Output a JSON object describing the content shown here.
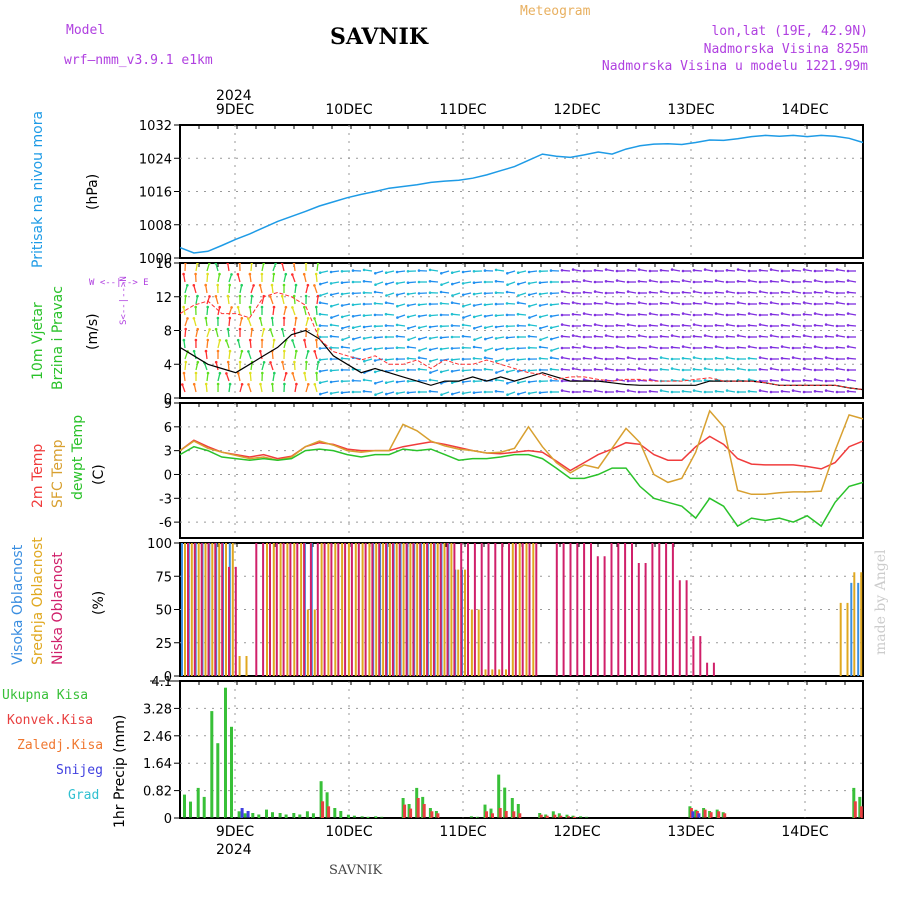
{
  "header": {
    "model_label": "Model",
    "model_name": "wrf—nmm_v3.9.1  e1km",
    "station": "SAVNIK",
    "product": "Meteogram",
    "lonlat": "lon,lat (19E, 42.9N)",
    "elevation": "Nadmorska Visina 825m",
    "model_elevation": "Nadmorska Visina u modelu 1221.99m"
  },
  "dates": {
    "year": "2024",
    "days": [
      "9DEC",
      "10DEC",
      "11DEC",
      "12DEC",
      "13DEC",
      "14DEC"
    ]
  },
  "footer": {
    "station": "SAVNIK",
    "signature": "made by Angel"
  },
  "panels": {
    "pressure": {
      "label1": "Pritisak na nivou mora",
      "unit": "(hPa)"
    },
    "wind": {
      "label1": "10m Vjetar",
      "label2": "Brzina i Pravac",
      "unit": "(m/s)",
      "compass": "W <--|--> E",
      "compass2": "S<--|-->N"
    },
    "temp": {
      "label1": "2m Temp",
      "label2": "SFC Temp",
      "label3": "dewpt Temp",
      "unit": "(C)"
    },
    "cloud": {
      "label1": "Visoka Oblacnost",
      "label2": "Srednja Oblacnost",
      "label3": "Niska Oblacnost",
      "unit": "(%)"
    },
    "precip": {
      "label1": "Ukupna Kisa",
      "label2": "Konvek.Kisa",
      "label3": "Zaledj.Kisa",
      "label4": "Snijeg",
      "label5": "Grad",
      "unit": "1hr Precip (mm)"
    }
  },
  "colors": {
    "pressure": "#1e9be6",
    "t2m": "#f03c3c",
    "tsfc": "#d8a030",
    "dewpt": "#2ac22a",
    "high_cloud": "#3a8ee0",
    "mid_cloud": "#e0a820",
    "low_cloud": "#d0206a",
    "total_rain": "#38c038",
    "conv_rain": "#e84040",
    "frz_rain": "#f07830",
    "snow": "#4040e0",
    "hail": "#30c0d0",
    "purple_text": "#b040e0"
  },
  "chart_data": [
    {
      "type": "line",
      "title": "",
      "ylabel": "Pritisak na nivou mora (hPa)",
      "ylim": [
        1000,
        1032
      ],
      "yticks": [
        1000,
        1008,
        1016,
        1024,
        1032
      ],
      "x_hours_from_start": [
        0,
        6,
        12,
        18,
        24,
        30,
        36,
        42,
        48,
        54,
        60,
        66,
        72,
        78,
        84,
        90,
        96,
        102,
        108,
        114,
        120,
        126,
        132,
        138,
        144
      ],
      "x_hours_full": [
        0,
        3,
        6,
        9,
        12,
        15,
        18,
        21,
        24,
        27,
        30,
        33,
        36,
        39,
        42,
        45,
        48,
        51,
        54,
        57,
        60,
        63,
        66,
        69,
        72,
        75,
        78,
        81,
        84,
        87,
        90,
        93,
        96,
        99,
        102,
        105,
        108,
        111,
        114,
        117,
        120,
        123,
        126,
        129,
        132,
        135,
        138,
        141,
        144,
        147
      ],
      "series": [
        {
          "name": "Pritisak",
          "values": [
            1002.5,
            1001.2,
            1001.6,
            1003.0,
            1004.5,
            1005.8,
            1007.3,
            1008.8,
            1010.0,
            1011.2,
            1012.5,
            1013.5,
            1014.5,
            1015.3,
            1016.0,
            1016.8,
            1017.2,
            1017.6,
            1018.2,
            1018.5,
            1018.7,
            1019.2,
            1020.0,
            1021.0,
            1022.0,
            1023.5,
            1025.0,
            1024.5,
            1024.2,
            1024.8,
            1025.5,
            1025.0,
            1026.2,
            1027.0,
            1027.4,
            1027.5,
            1027.3,
            1027.8,
            1028.4,
            1028.3,
            1028.7,
            1029.2,
            1029.5,
            1029.3,
            1029.5,
            1029.2,
            1029.5,
            1029.3,
            1028.8,
            1027.8
          ]
        }
      ]
    },
    {
      "type": "line",
      "title": "",
      "ylabel": "10m Vjetar Brzina i Pravac (m/s)",
      "ylim": [
        0,
        16
      ],
      "yticks": [
        0,
        4,
        8,
        12,
        16
      ],
      "series": [
        {
          "name": "wind speed",
          "values": [
            6,
            5,
            4,
            3.5,
            3,
            4,
            5,
            6,
            7.5,
            8,
            7,
            5,
            4,
            3,
            3.5,
            3,
            2.5,
            2,
            1.5,
            2,
            2,
            2.5,
            2,
            2.5,
            2,
            2.5,
            3,
            2.5,
            2,
            2,
            2,
            1.8,
            1.6,
            1.5,
            1.5,
            1.5,
            1.5,
            1.5,
            2,
            2,
            2,
            2,
            1.8,
            1.5,
            1.5,
            1.5,
            1.5,
            1.5,
            1.2,
            1
          ]
        },
        {
          "name": "gust",
          "values": [
            10,
            11,
            11.5,
            10,
            10,
            9.5,
            12,
            12.5,
            12,
            11,
            7,
            5.5,
            5,
            4.5,
            5,
            4,
            4,
            4.5,
            3.5,
            4.5,
            4,
            4,
            4.5,
            4,
            3.5,
            3,
            2.8,
            2.2,
            2.5,
            2.5,
            2.2,
            2,
            2.2,
            2.2,
            2,
            2,
            2,
            2.2,
            2.4,
            2,
            2,
            2,
            1.8,
            1.5,
            1.5,
            1.5,
            1.5,
            1.5,
            1.2,
            1
          ]
        }
      ]
    },
    {
      "type": "line",
      "title": "",
      "ylabel": "2m Temp, SFC Temp, dewpt Temp (C)",
      "ylim": [
        -8,
        9
      ],
      "yticks": [
        -6,
        -3,
        0,
        3,
        6,
        9
      ],
      "series": [
        {
          "name": "2m Temp",
          "values": [
            3,
            4.3,
            3.5,
            2.8,
            2.5,
            2.2,
            2.5,
            2,
            2.3,
            3.5,
            4,
            3.8,
            3.2,
            3,
            3,
            3,
            3.5,
            3.8,
            4.1,
            3.8,
            3.4,
            3,
            2.7,
            2.6,
            2.8,
            3,
            2.8,
            1.7,
            0.5,
            1.5,
            2.5,
            3.2,
            4,
            3.8,
            2.5,
            1.8,
            1.8,
            3.5,
            4.8,
            3.8,
            2,
            1.3,
            1.2,
            1.2,
            1.2,
            1,
            0.7,
            1.5,
            3.5,
            4.2
          ]
        },
        {
          "name": "SFC Temp",
          "values": [
            3,
            4.2,
            3.3,
            2.8,
            2.4,
            2,
            2.2,
            1.8,
            2.2,
            3.5,
            4.2,
            3.7,
            3,
            2.8,
            3,
            3,
            6.3,
            5.5,
            4.2,
            3.6,
            3.2,
            3,
            2.7,
            2.8,
            3.3,
            6,
            3.5,
            1.5,
            0.2,
            1.2,
            0.8,
            3.3,
            5.8,
            4,
            0,
            -1,
            -0.5,
            2.8,
            8,
            6,
            -2,
            -2.5,
            -2.5,
            -2.3,
            -2.2,
            -2.2,
            -2.1,
            3,
            7.5,
            7
          ]
        },
        {
          "name": "dewpt Temp",
          "values": [
            2.5,
            3.5,
            3,
            2.2,
            2,
            1.8,
            2,
            1.8,
            2,
            3,
            3.2,
            3,
            2.5,
            2.2,
            2.5,
            2.5,
            3.2,
            3,
            3.2,
            2.5,
            1.8,
            2,
            2,
            2.2,
            2.5,
            2.5,
            2,
            0.8,
            -0.5,
            -0.5,
            0,
            0.8,
            0.8,
            -1.5,
            -3,
            -3.5,
            -4,
            -5.5,
            -3,
            -4,
            -6.5,
            -5.5,
            -5.8,
            -5.5,
            -6,
            -5.2,
            -6.5,
            -3.5,
            -1.5,
            -1
          ]
        }
      ]
    },
    {
      "type": "bar",
      "title": "",
      "ylabel": "Oblacnost (%)",
      "ylim": [
        0,
        100
      ],
      "yticks": [
        0,
        25,
        50,
        75,
        100
      ],
      "series": [
        {
          "name": "Visoka Oblacnost",
          "values": [
            100,
            100,
            100,
            100,
            0,
            0,
            0,
            0,
            0,
            100,
            0,
            0,
            0,
            0,
            100,
            100,
            100,
            100,
            100,
            100,
            80,
            0,
            0,
            0,
            0,
            0,
            0,
            0,
            0,
            0,
            0,
            0,
            0,
            0,
            0,
            0,
            0,
            0,
            0,
            0,
            0,
            0,
            0,
            0,
            0,
            0,
            0,
            0,
            0,
            70
          ]
        },
        {
          "name": "Srednja Oblacnost",
          "values": [
            100,
            100,
            100,
            100,
            15,
            0,
            100,
            100,
            100,
            50,
            100,
            100,
            100,
            100,
            100,
            100,
            100,
            100,
            100,
            100,
            80,
            50,
            5,
            5,
            100,
            100,
            0,
            0,
            0,
            0,
            0,
            0,
            0,
            0,
            0,
            0,
            0,
            0,
            0,
            0,
            0,
            0,
            0,
            0,
            0,
            0,
            0,
            0,
            55,
            78
          ]
        },
        {
          "name": "Niska Oblacnost",
          "values": [
            100,
            100,
            100,
            82,
            0,
            100,
            100,
            100,
            100,
            100,
            100,
            100,
            100,
            100,
            100,
            100,
            100,
            100,
            100,
            100,
            100,
            100,
            100,
            100,
            100,
            100,
            0,
            100,
            100,
            100,
            90,
            100,
            100,
            85,
            100,
            100,
            72,
            30,
            10,
            0,
            0,
            0,
            0,
            0,
            0,
            0,
            0,
            0,
            0,
            0
          ]
        }
      ]
    },
    {
      "type": "bar",
      "title": "",
      "ylabel": "1hr Precip (mm)",
      "ylim": [
        0,
        4.1
      ],
      "yticks": [
        0,
        0.82,
        1.64,
        2.46,
        3.28,
        4.1
      ],
      "series": [
        {
          "name": "Ukupna Kisa",
          "values": [
            0.7,
            0.9,
            3.2,
            3.9,
            0.2,
            0.15,
            0.25,
            0.15,
            0.15,
            0.2,
            1.1,
            0.3,
            0.1,
            0.05,
            0.05,
            0,
            0.6,
            0.9,
            0.3,
            0,
            0,
            0.05,
            0.4,
            1.3,
            0.6,
            0,
            0.15,
            0.2,
            0.1,
            0.05,
            0,
            0,
            0,
            0,
            0,
            0,
            0,
            0.35,
            0.3,
            0.25,
            0,
            0,
            0,
            0,
            0,
            0,
            0,
            0,
            0,
            0.9
          ]
        },
        {
          "name": "Konvek.Kisa",
          "values": [
            0,
            0,
            0,
            0,
            0,
            0,
            0,
            0,
            0,
            0,
            0.5,
            0,
            0,
            0,
            0,
            0,
            0.4,
            0.6,
            0.2,
            0,
            0,
            0,
            0.2,
            0.3,
            0.2,
            0,
            0.1,
            0.1,
            0.05,
            0,
            0,
            0,
            0,
            0,
            0,
            0,
            0,
            0.3,
            0.25,
            0.2,
            0,
            0,
            0,
            0,
            0,
            0,
            0,
            0,
            0,
            0.5
          ]
        },
        {
          "name": "Snijeg",
          "values": [
            0,
            0,
            0,
            0,
            0.3,
            0,
            0,
            0,
            0,
            0,
            0,
            0,
            0,
            0,
            0,
            0,
            0,
            0,
            0,
            0,
            0,
            0,
            0,
            0,
            0,
            0,
            0,
            0,
            0,
            0,
            0,
            0,
            0,
            0,
            0,
            0,
            0,
            0.2,
            0,
            0,
            0,
            0,
            0,
            0,
            0,
            0,
            0,
            0,
            0,
            0
          ]
        }
      ]
    }
  ]
}
